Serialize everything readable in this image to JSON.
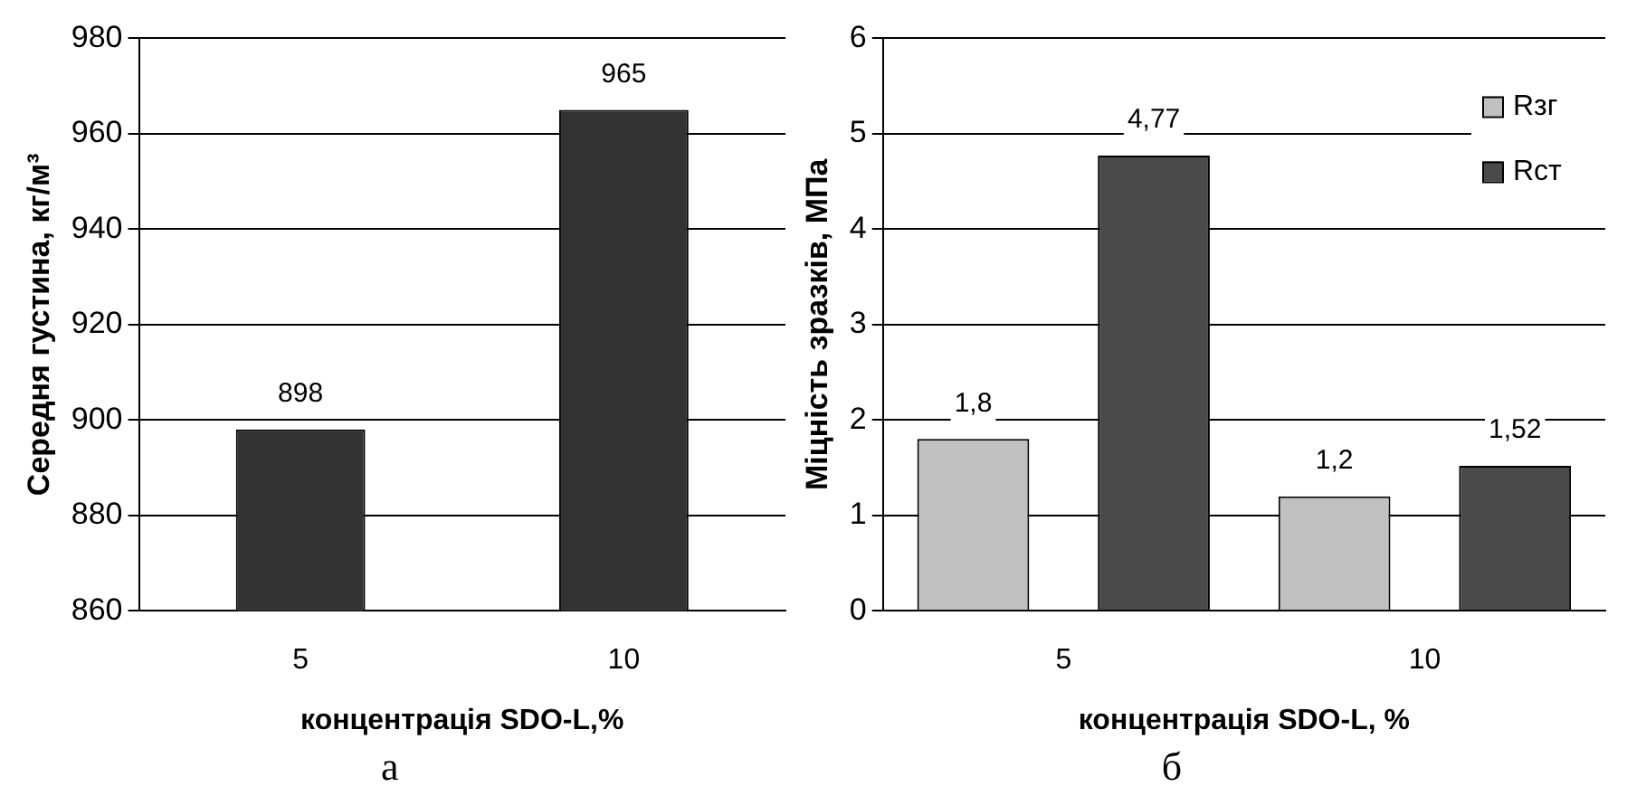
{
  "chart_data": [
    {
      "type": "bar",
      "categories": [
        "5",
        "10"
      ],
      "values": [
        898,
        965
      ],
      "color": "#333333",
      "data_labels": true,
      "xlabel": "концентрація SDO-L,%",
      "ylabel": "Середня густина, кг/м³",
      "ylim": [
        860,
        980
      ],
      "yticks": [
        860,
        880,
        900,
        920,
        940,
        960,
        980
      ],
      "grid": "y",
      "legend": false,
      "annotations": [
        "а"
      ]
    },
    {
      "type": "bar",
      "categories": [
        "5",
        "10"
      ],
      "series": [
        {
          "name": "Rзг",
          "color": "#c0c0c0",
          "values": [
            1.8,
            1.2
          ],
          "value_labels": [
            "1,8",
            "1,2"
          ]
        },
        {
          "name": "Rст",
          "color": "#4a4a4a",
          "values": [
            4.77,
            1.52
          ],
          "value_labels": [
            "4,77",
            "1,52"
          ]
        }
      ],
      "xlabel": "концентрація SDO-L, %",
      "ylabel": "Міцність зразків, МПа",
      "ylim": [
        0,
        6
      ],
      "yticks": [
        0,
        1,
        2,
        3,
        4,
        5,
        6
      ],
      "grid": "y",
      "legend": "top right",
      "annotations": [
        "б"
      ]
    }
  ]
}
